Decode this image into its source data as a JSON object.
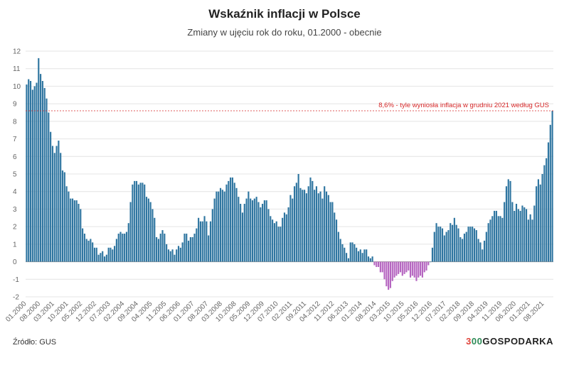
{
  "chart_data": {
    "type": "bar",
    "title": "Wskaźnik inflacji w Polsce",
    "subtitle": "Zmiany w ujęciu rok do roku, 01.2000 - obecnie",
    "xlabel": "",
    "ylabel": "",
    "ylim": [
      -2,
      12
    ],
    "yticks": [
      -2,
      -1,
      0,
      1,
      2,
      3,
      4,
      5,
      6,
      7,
      8,
      9,
      10,
      11,
      12
    ],
    "grid": true,
    "start": "01.2000",
    "end": "12.2021",
    "colors": {
      "positive": "#2e75a0",
      "negative": "#b565c0",
      "annotation": "#d62728",
      "grid": "#e4e4e4",
      "zero": "#999999"
    },
    "x_tick_labels": [
      "01.2000",
      "08.2000",
      "03.2001",
      "10.2001",
      "05.2002",
      "12.2002",
      "07.2003",
      "02.2004",
      "09.2004",
      "04.2005",
      "11.2005",
      "06.2006",
      "01.2007",
      "08.2007",
      "03.2008",
      "10.2008",
      "05.2009",
      "12.2009",
      "07.2010",
      "02.2011",
      "09.2011",
      "04.2012",
      "11.2012",
      "06.2013",
      "01.2014",
      "08.2014",
      "03.2015",
      "10.2015",
      "05.2016",
      "12.2016",
      "07.2017",
      "02.2018",
      "09.2018",
      "04.2019",
      "11.2019",
      "06.2020",
      "01.2021",
      "08.2021"
    ],
    "values": [
      10.1,
      10.4,
      10.3,
      9.8,
      10.0,
      10.2,
      11.6,
      10.7,
      10.3,
      9.9,
      9.3,
      8.5,
      7.4,
      6.6,
      6.2,
      6.6,
      6.9,
      6.2,
      5.2,
      5.1,
      4.3,
      4.0,
      3.6,
      3.6,
      3.5,
      3.5,
      3.3,
      3.0,
      1.9,
      1.6,
      1.3,
      1.2,
      1.3,
      1.1,
      0.8,
      0.8,
      0.4,
      0.5,
      0.6,
      0.3,
      0.4,
      0.8,
      0.8,
      0.7,
      0.9,
      1.3,
      1.6,
      1.7,
      1.6,
      1.6,
      1.7,
      2.2,
      3.4,
      4.4,
      4.6,
      4.6,
      4.4,
      4.5,
      4.5,
      4.4,
      3.7,
      3.6,
      3.4,
      3.0,
      2.5,
      1.4,
      1.3,
      1.6,
      1.8,
      1.6,
      1.0,
      0.7,
      0.6,
      0.7,
      0.4,
      0.7,
      0.9,
      0.8,
      1.1,
      1.6,
      1.6,
      1.2,
      1.4,
      1.4,
      1.6,
      1.9,
      2.5,
      2.3,
      2.3,
      2.6,
      2.3,
      1.5,
      2.3,
      3.0,
      3.6,
      4.0,
      4.0,
      4.2,
      4.1,
      4.0,
      4.4,
      4.6,
      4.8,
      4.8,
      4.5,
      4.2,
      3.7,
      3.3,
      2.8,
      3.3,
      3.6,
      4.0,
      3.6,
      3.5,
      3.6,
      3.7,
      3.4,
      3.1,
      3.3,
      3.5,
      3.5,
      3.0,
      2.6,
      2.4,
      2.2,
      2.3,
      2.0,
      2.0,
      2.5,
      2.8,
      2.7,
      3.1,
      3.8,
      3.6,
      4.3,
      4.5,
      5.0,
      4.2,
      4.1,
      4.1,
      3.9,
      4.3,
      4.8,
      4.6,
      4.1,
      4.3,
      3.9,
      4.0,
      3.6,
      4.3,
      4.0,
      3.8,
      3.4,
      3.4,
      2.8,
      2.4,
      1.7,
      1.3,
      1.0,
      0.8,
      0.5,
      0.2,
      1.1,
      1.1,
      1.0,
      0.8,
      0.6,
      0.7,
      0.5,
      0.7,
      0.7,
      0.3,
      0.2,
      0.3,
      -0.2,
      -0.3,
      -0.3,
      -0.6,
      -0.6,
      -1.0,
      -1.4,
      -1.6,
      -1.5,
      -1.1,
      -0.9,
      -0.8,
      -0.7,
      -0.6,
      -0.8,
      -0.7,
      -0.6,
      -0.5,
      -0.9,
      -0.8,
      -0.9,
      -1.1,
      -0.9,
      -0.8,
      -0.9,
      -0.6,
      -0.5,
      -0.2,
      0.0,
      0.8,
      1.7,
      2.2,
      2.0,
      2.0,
      1.9,
      1.5,
      1.7,
      1.8,
      2.2,
      2.1,
      2.5,
      2.1,
      1.9,
      1.4,
      1.3,
      1.6,
      1.7,
      2.0,
      2.0,
      2.0,
      1.9,
      1.8,
      1.3,
      1.1,
      0.7,
      1.2,
      1.7,
      2.2,
      2.4,
      2.6,
      2.9,
      2.9,
      2.6,
      2.6,
      2.5,
      3.4,
      4.3,
      4.7,
      4.6,
      3.4,
      2.9,
      3.3,
      3.0,
      2.9,
      3.2,
      3.1,
      3.0,
      2.4,
      2.7,
      2.4,
      3.2,
      4.3,
      4.7,
      4.4,
      5.0,
      5.5,
      5.9,
      6.8,
      7.8,
      8.6
    ],
    "annotations": [
      {
        "y": 8.6,
        "text": "8,6% - tyle wyniosła inflacja w grudniu 2021 według GUS"
      }
    ]
  },
  "footer": {
    "source": "Źródło: GUS"
  },
  "brand": {
    "part1": "3",
    "part2": "00",
    "part3": "GOSPODARKA"
  }
}
